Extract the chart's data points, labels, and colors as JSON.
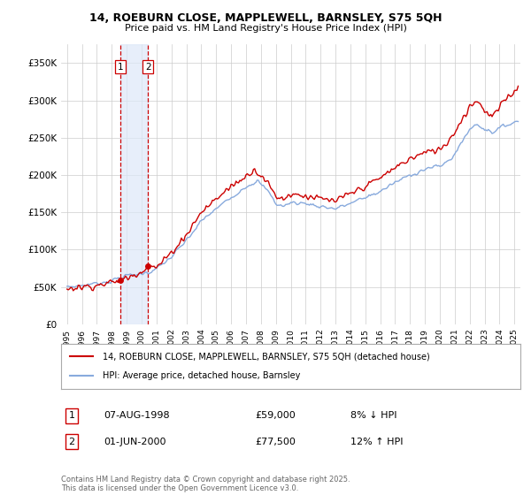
{
  "title_line1": "14, ROEBURN CLOSE, MAPPLEWELL, BARNSLEY, S75 5QH",
  "title_line2": "Price paid vs. HM Land Registry's House Price Index (HPI)",
  "legend_label1": "14, ROEBURN CLOSE, MAPPLEWELL, BARNSLEY, S75 5QH (detached house)",
  "legend_label2": "HPI: Average price, detached house, Barnsley",
  "footer": "Contains HM Land Registry data © Crown copyright and database right 2025.\nThis data is licensed under the Open Government Licence v3.0.",
  "transactions": [
    {
      "num": 1,
      "date_label": "07-AUG-1998",
      "price": "£59,000",
      "rel": "8% ↓ HPI",
      "date_x": 1998.59
    },
    {
      "num": 2,
      "date_label": "01-JUN-2000",
      "price": "£77,500",
      "rel": "12% ↑ HPI",
      "date_x": 2000.42
    }
  ],
  "sale_marker_color": "#cc0000",
  "hpi_color": "#88aadd",
  "price_color": "#cc0000",
  "vline_color": "#cc0000",
  "shade_color": "#dde8f8",
  "ylim": [
    0,
    375000
  ],
  "yticks": [
    0,
    50000,
    100000,
    150000,
    200000,
    250000,
    300000,
    350000
  ],
  "ytick_labels": [
    "£0",
    "£50K",
    "£100K",
    "£150K",
    "£200K",
    "£250K",
    "£300K",
    "£350K"
  ],
  "xlim_start": 1994.6,
  "xlim_end": 2025.4,
  "background_color": "#ffffff",
  "grid_color": "#cccccc"
}
